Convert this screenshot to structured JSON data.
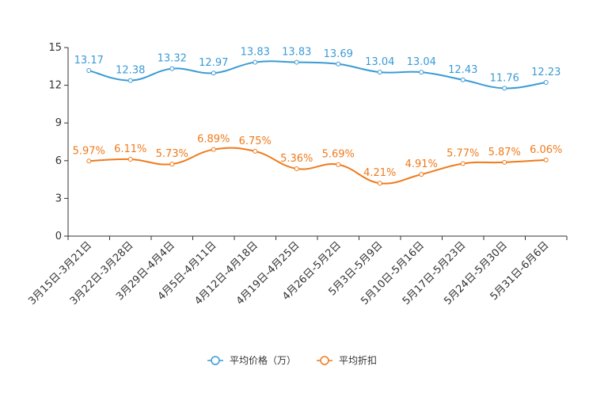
{
  "chart_data": {
    "type": "line",
    "categories": [
      "3月15日-3月21日",
      "3月22日-3月28日",
      "3月29日-4月4日",
      "4月5日-4月11日",
      "4月12日-4月18日",
      "4月19日-4月25日",
      "4月26日-5月2日",
      "5月3日-5月9日",
      "5月10日-5月16日",
      "5月17日-5月23日",
      "5月24日-5月30日",
      "5月31日-6月6日"
    ],
    "ylim": [
      0,
      15
    ],
    "yticks": [
      "0",
      "3",
      "6",
      "9",
      "12",
      "15"
    ],
    "series": [
      {
        "name": "平均价格（万）",
        "color": "#3a9bd5",
        "values": [
          13.17,
          12.38,
          13.32,
          12.97,
          13.83,
          13.83,
          13.69,
          13.04,
          13.04,
          12.43,
          11.76,
          12.23
        ],
        "labels": [
          "13.17",
          "12.38",
          "13.32",
          "12.97",
          "13.83",
          "13.83",
          "13.69",
          "13.04",
          "13.04",
          "12.43",
          "11.76",
          "12.23"
        ]
      },
      {
        "name": "平均折扣",
        "color": "#f07a1a",
        "values": [
          5.97,
          6.11,
          5.73,
          6.89,
          6.75,
          5.36,
          5.69,
          4.21,
          4.91,
          5.77,
          5.87,
          6.06
        ],
        "labels": [
          "5.97%",
          "6.11%",
          "5.73%",
          "6.89%",
          "6.75%",
          "5.36%",
          "5.69%",
          "4.21%",
          "4.91%",
          "5.77%",
          "5.87%",
          "6.06%"
        ]
      }
    ],
    "legend": [
      "平均价格（万）",
      "平均折扣"
    ]
  }
}
